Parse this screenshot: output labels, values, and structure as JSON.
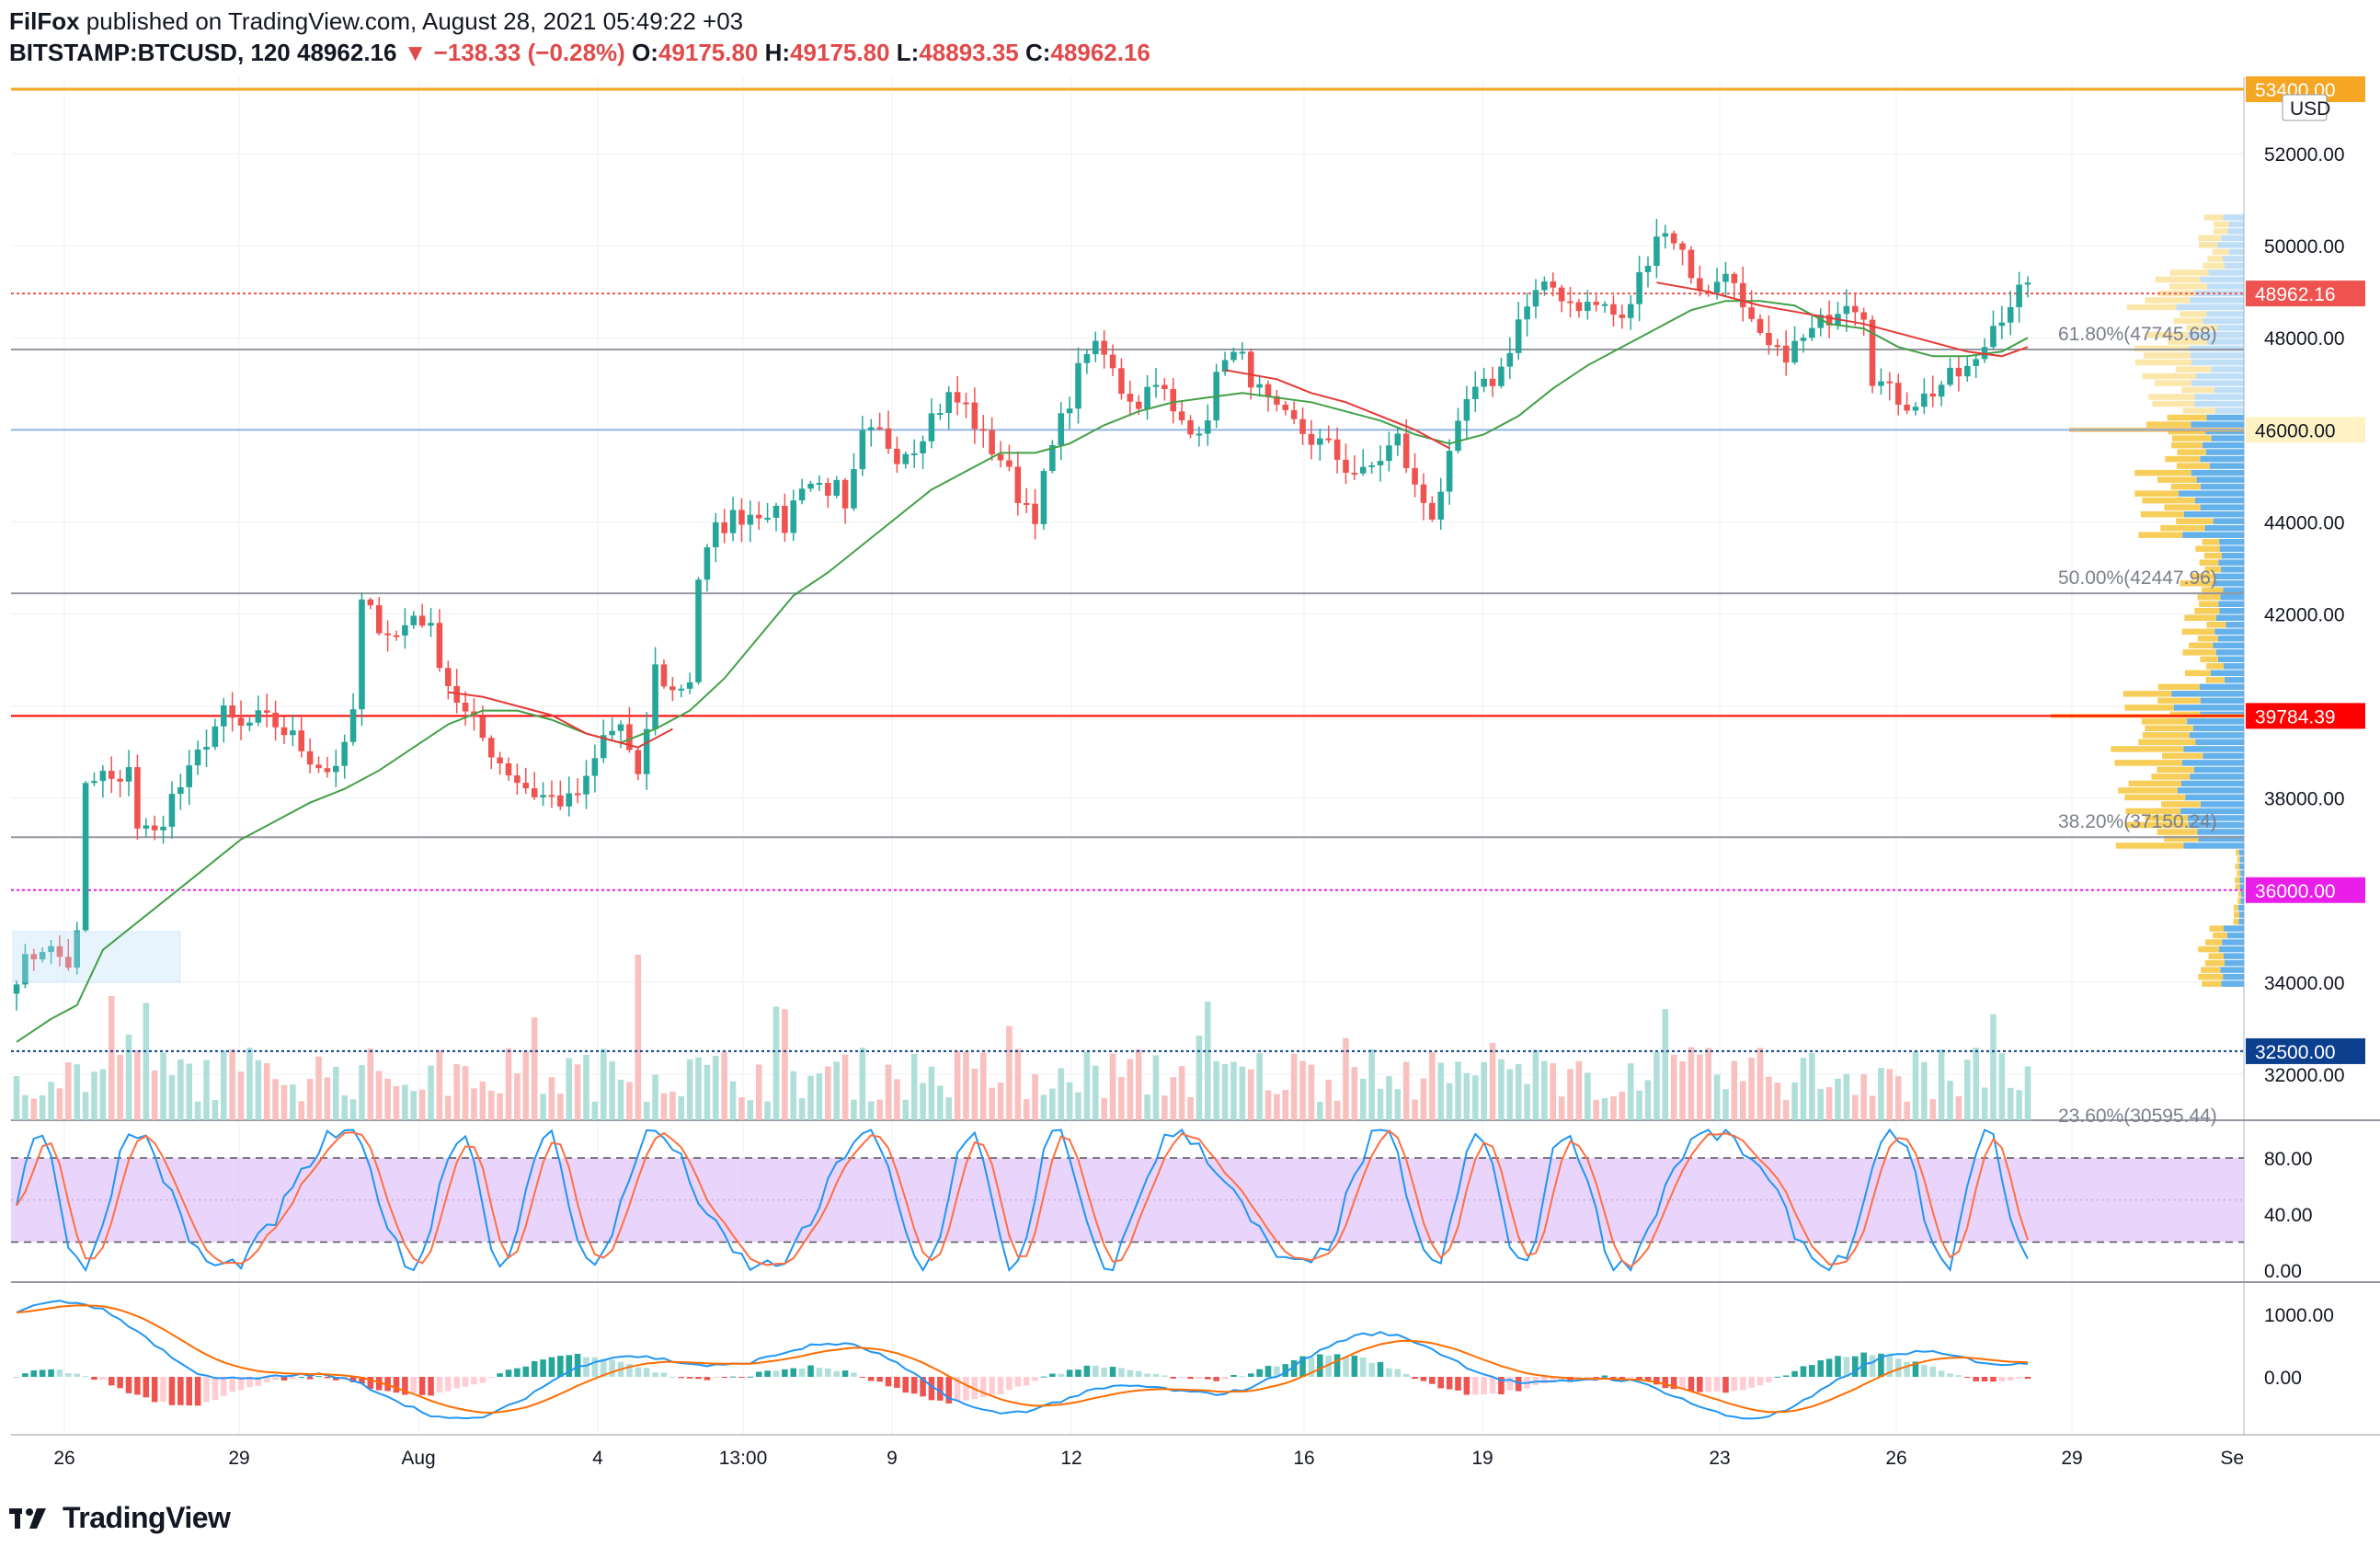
{
  "header": {
    "author": "FilFox",
    "published_on": "published on TradingView.com, August 28, 2021 05:49:22 +03",
    "symbol": "BITSTAMP:BTCUSD, 120",
    "last": "48962.16",
    "arrow": "▼",
    "change": "−138.33 (−0.28%)",
    "o_label": "O:",
    "o": "49175.80",
    "h_label": "H:",
    "h": "49175.80",
    "l_label": "L:",
    "l": "48893.35",
    "c_label": "C:",
    "c": "48962.16"
  },
  "colors": {
    "up": "#26a69a",
    "down": "#ef5350",
    "ma_green": "#43a047",
    "ma_red": "#e53935",
    "orange": "#f5a623",
    "magenta": "#e91ee9",
    "navy": "#0d3f8f",
    "stoch_band": "#e1c6fa",
    "vp_blue": "#4aa3e8",
    "vp_yellow": "#f7c948"
  },
  "footer": {
    "brand": "TradingView"
  },
  "chart_data": {
    "type": "candlestick",
    "symbol": "BITSTAMP:BTCUSD",
    "interval": "120",
    "currency": "USD",
    "ylim": [
      31000,
      53500
    ],
    "y_ticks": [
      "52000.00",
      "50000.00",
      "48000.00",
      "44000.00",
      "42000.00",
      "38000.00",
      "34000.00",
      "32000.00"
    ],
    "x_labels": [
      "26",
      "29",
      "Aug",
      "4",
      "13:00",
      "9",
      "12",
      "16",
      "19",
      "23",
      "26",
      "29",
      "Se"
    ],
    "horizontal_levels": [
      {
        "label": "53400.00",
        "price": 53400,
        "color": "#f5a623",
        "style": "solid"
      },
      {
        "label": "48962.16",
        "price": 48962.16,
        "color": "#ef5350",
        "style": "dotted"
      },
      {
        "label": "46000.00",
        "price": 46000,
        "color": "#90b4e6",
        "style": "solid"
      },
      {
        "label": "39784.39",
        "price": 39784.39,
        "color": "#ff0000",
        "style": "solid"
      },
      {
        "label": "36000.00",
        "price": 36000,
        "color": "#e91ee9",
        "style": "dotted"
      },
      {
        "label": "32500.00",
        "price": 32500,
        "color": "#0d3f8f",
        "style": "dotted"
      }
    ],
    "fib_levels": [
      {
        "label": "61.80%(47745.68)",
        "price": 47745.68
      },
      {
        "label": "50.00%(42447.96)",
        "price": 42447.96
      },
      {
        "label": "38.20%(37150.24)",
        "price": 37150.24
      },
      {
        "label": "23.60%(30595.44)",
        "price": 30595.44
      }
    ],
    "close_path": [
      [
        0,
        34200
      ],
      [
        3,
        34800
      ],
      [
        6,
        34400
      ],
      [
        7,
        35000
      ],
      [
        8,
        38200
      ],
      [
        10,
        38500
      ],
      [
        12,
        38200
      ],
      [
        13,
        38800
      ],
      [
        14,
        37400
      ],
      [
        16,
        37200
      ],
      [
        18,
        38000
      ],
      [
        20,
        38500
      ],
      [
        22,
        39300
      ],
      [
        24,
        39800
      ],
      [
        26,
        39500
      ],
      [
        28,
        39700
      ],
      [
        30,
        39600
      ],
      [
        32,
        39300
      ],
      [
        34,
        38900
      ],
      [
        36,
        38600
      ],
      [
        38,
        39000
      ],
      [
        39,
        39900
      ],
      [
        40,
        42200
      ],
      [
        42,
        41800
      ],
      [
        44,
        41500
      ],
      [
        46,
        42000
      ],
      [
        47,
        41900
      ],
      [
        48,
        41600
      ],
      [
        50,
        40500
      ],
      [
        52,
        39800
      ],
      [
        54,
        39300
      ],
      [
        56,
        38800
      ],
      [
        58,
        38400
      ],
      [
        60,
        38100
      ],
      [
        62,
        38000
      ],
      [
        64,
        37900
      ],
      [
        66,
        38300
      ],
      [
        68,
        39300
      ],
      [
        70,
        39600
      ],
      [
        72,
        38300
      ],
      [
        74,
        40800
      ],
      [
        76,
        40300
      ],
      [
        78,
        40600
      ],
      [
        79,
        42800
      ],
      [
        81,
        43800
      ],
      [
        83,
        44100
      ],
      [
        85,
        44200
      ],
      [
        87,
        44300
      ],
      [
        89,
        43900
      ],
      [
        91,
        44900
      ],
      [
        93,
        44800
      ],
      [
        95,
        44700
      ],
      [
        96,
        44100
      ],
      [
        98,
        45800
      ],
      [
        100,
        45900
      ],
      [
        102,
        45500
      ],
      [
        104,
        45700
      ],
      [
        106,
        46300
      ],
      [
        108,
        46700
      ],
      [
        110,
        46500
      ],
      [
        112,
        45800
      ],
      [
        114,
        45400
      ],
      [
        116,
        44600
      ],
      [
        118,
        44200
      ],
      [
        120,
        45600
      ],
      [
        122,
        46700
      ],
      [
        124,
        47800
      ],
      [
        126,
        47600
      ],
      [
        128,
        46900
      ],
      [
        130,
        46600
      ],
      [
        132,
        47200
      ],
      [
        134,
        46300
      ],
      [
        136,
        45900
      ],
      [
        138,
        46400
      ],
      [
        140,
        47700
      ],
      [
        142,
        47500
      ],
      [
        144,
        46800
      ],
      [
        146,
        46300
      ],
      [
        148,
        46100
      ],
      [
        150,
        45800
      ],
      [
        152,
        45600
      ],
      [
        154,
        45200
      ],
      [
        156,
        45000
      ],
      [
        158,
        45400
      ],
      [
        160,
        45800
      ],
      [
        162,
        44700
      ],
      [
        164,
        44200
      ],
      [
        166,
        45300
      ],
      [
        168,
        46600
      ],
      [
        170,
        46900
      ],
      [
        172,
        47300
      ],
      [
        174,
        48400
      ],
      [
        176,
        48900
      ],
      [
        178,
        49100
      ],
      [
        180,
        48800
      ],
      [
        182,
        48700
      ],
      [
        184,
        48700
      ],
      [
        186,
        48300
      ],
      [
        188,
        49300
      ],
      [
        190,
        50300
      ],
      [
        192,
        50200
      ],
      [
        194,
        49400
      ],
      [
        196,
        48900
      ],
      [
        198,
        49600
      ],
      [
        200,
        48500
      ],
      [
        202,
        47900
      ],
      [
        204,
        47600
      ],
      [
        206,
        47800
      ],
      [
        208,
        48100
      ],
      [
        210,
        48500
      ],
      [
        212,
        48900
      ],
      [
        214,
        48600
      ],
      [
        215,
        47200
      ],
      [
        217,
        46800
      ],
      [
        219,
        46600
      ],
      [
        221,
        46700
      ],
      [
        223,
        47000
      ],
      [
        225,
        47200
      ],
      [
        227,
        47400
      ],
      [
        229,
        48300
      ],
      [
        231,
        48800
      ],
      [
        232,
        49000
      ],
      [
        233,
        48962
      ]
    ],
    "ma_green": [
      [
        0,
        32700
      ],
      [
        4,
        33200
      ],
      [
        7,
        33500
      ],
      [
        10,
        34700
      ],
      [
        14,
        35300
      ],
      [
        18,
        35900
      ],
      [
        22,
        36500
      ],
      [
        26,
        37100
      ],
      [
        30,
        37500
      ],
      [
        34,
        37900
      ],
      [
        38,
        38200
      ],
      [
        42,
        38600
      ],
      [
        46,
        39100
      ],
      [
        50,
        39600
      ],
      [
        54,
        39900
      ],
      [
        58,
        39900
      ],
      [
        62,
        39700
      ],
      [
        66,
        39400
      ],
      [
        70,
        39200
      ],
      [
        74,
        39500
      ],
      [
        78,
        39900
      ],
      [
        82,
        40600
      ],
      [
        86,
        41500
      ],
      [
        90,
        42400
      ],
      [
        94,
        42900
      ],
      [
        98,
        43500
      ],
      [
        102,
        44100
      ],
      [
        106,
        44700
      ],
      [
        110,
        45100
      ],
      [
        114,
        45500
      ],
      [
        118,
        45500
      ],
      [
        122,
        45700
      ],
      [
        126,
        46100
      ],
      [
        130,
        46400
      ],
      [
        134,
        46600
      ],
      [
        138,
        46700
      ],
      [
        142,
        46800
      ],
      [
        146,
        46700
      ],
      [
        150,
        46600
      ],
      [
        154,
        46400
      ],
      [
        158,
        46200
      ],
      [
        162,
        45900
      ],
      [
        166,
        45700
      ],
      [
        170,
        45900
      ],
      [
        174,
        46300
      ],
      [
        178,
        46900
      ],
      [
        182,
        47400
      ],
      [
        186,
        47800
      ],
      [
        190,
        48200
      ],
      [
        194,
        48600
      ],
      [
        198,
        48800
      ],
      [
        202,
        48800
      ],
      [
        206,
        48700
      ],
      [
        210,
        48300
      ],
      [
        214,
        48200
      ],
      [
        218,
        47800
      ],
      [
        222,
        47600
      ],
      [
        226,
        47600
      ],
      [
        230,
        47700
      ],
      [
        233,
        48000
      ]
    ],
    "ma_red": [
      [
        50,
        40300
      ],
      [
        54,
        40200
      ],
      [
        58,
        40000
      ],
      [
        62,
        39800
      ],
      [
        66,
        39400
      ],
      [
        70,
        39200
      ],
      [
        72,
        39100
      ],
      [
        76,
        39500
      ],
      [
        140,
        47300
      ],
      [
        146,
        47100
      ],
      [
        150,
        46800
      ],
      [
        154,
        46600
      ],
      [
        158,
        46300
      ],
      [
        162,
        46000
      ],
      [
        166,
        45600
      ],
      [
        190,
        49200
      ],
      [
        196,
        49000
      ],
      [
        202,
        48700
      ],
      [
        208,
        48500
      ],
      [
        214,
        48300
      ],
      [
        220,
        48000
      ],
      [
        226,
        47700
      ],
      [
        230,
        47600
      ],
      [
        233,
        47800
      ]
    ],
    "stoch": {
      "ylim": [
        0,
        100
      ],
      "band": [
        20,
        80
      ],
      "y_ticks": [
        "80.00",
        "40.00",
        "0.00"
      ]
    },
    "macd": {
      "y_ticks": [
        "1000.00",
        "0.00"
      ]
    }
  }
}
